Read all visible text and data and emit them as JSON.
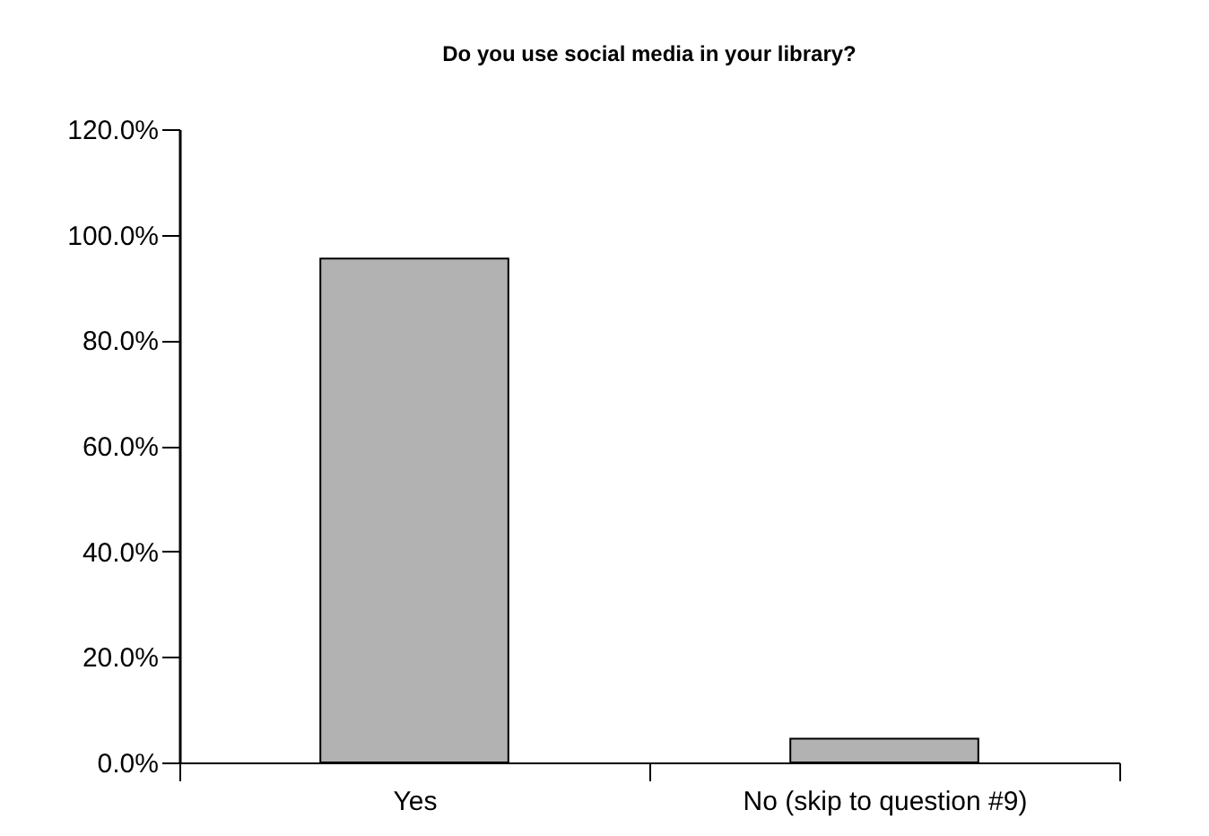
{
  "chart_data": {
    "type": "bar",
    "title": "Do you use social media in your library?",
    "categories": [
      "Yes",
      "No (skip to question #9)"
    ],
    "values": [
      95.5,
      4.5
    ],
    "color": "#b2b2b2",
    "ylim": [
      0,
      120
    ],
    "yticks": [
      {
        "value": 0,
        "label": "0.0%"
      },
      {
        "value": 20,
        "label": "20.0%"
      },
      {
        "value": 40,
        "label": "40.0%"
      },
      {
        "value": 60,
        "label": "60.0%"
      },
      {
        "value": 80,
        "label": "80.0%"
      },
      {
        "value": 100,
        "label": "100.0%"
      },
      {
        "value": 120,
        "label": "120.0%"
      }
    ],
    "grid": false
  }
}
